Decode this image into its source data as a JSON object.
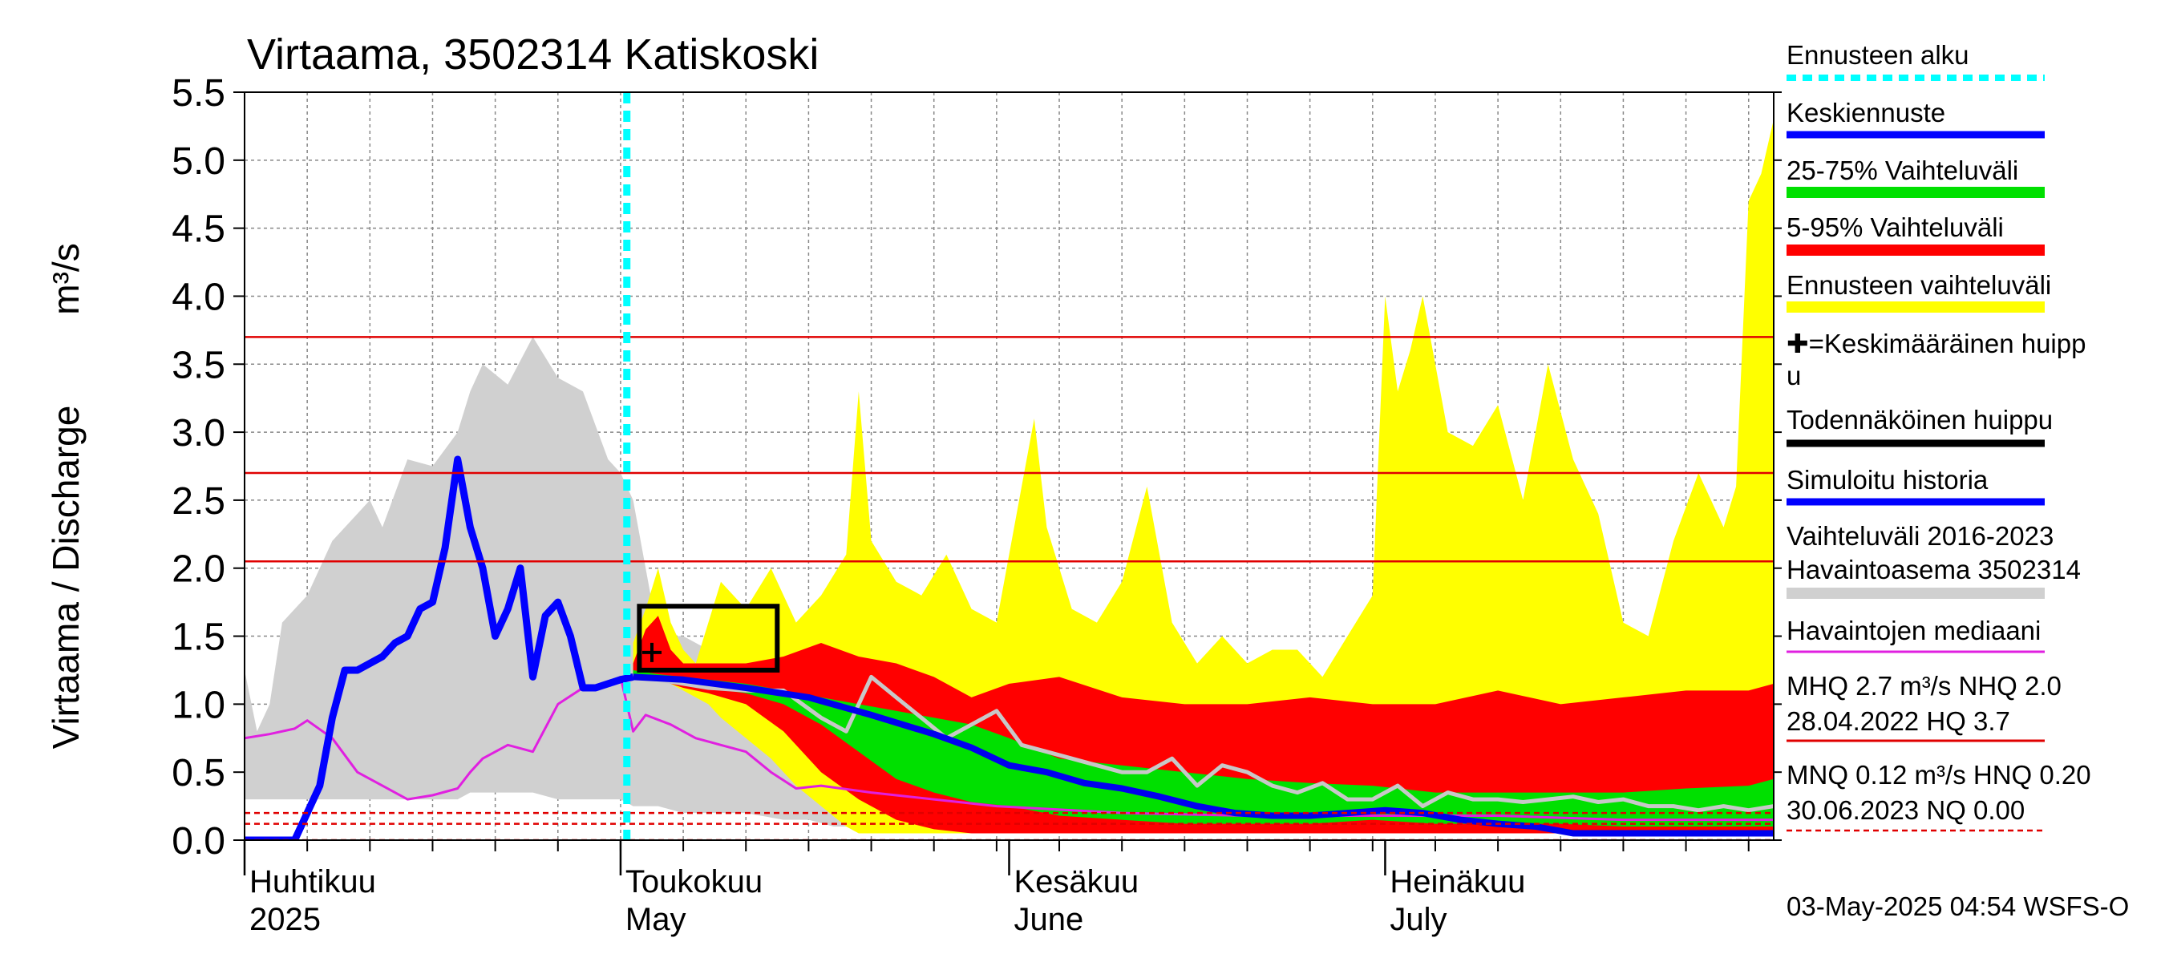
{
  "chart_data": {
    "type": "area",
    "title": "Virtaama, 3502314 Katiskoski",
    "ylabel": "Virtaama / Discharge",
    "yunit": "m³/s",
    "ylim": [
      0,
      5.5
    ],
    "yticks": [
      "0.0",
      "0.5",
      "1.0",
      "1.5",
      "2.0",
      "2.5",
      "3.0",
      "3.5",
      "4.0",
      "4.5",
      "5.0",
      "5.5"
    ],
    "x_range_days": [
      0,
      122
    ],
    "x_start": "2025-04-01",
    "month_labels": [
      {
        "day": 0,
        "fi": "Huhtikuu",
        "en": "2025"
      },
      {
        "day": 30,
        "fi": "Toukokuu",
        "en": "May"
      },
      {
        "day": 61,
        "fi": "Kesäkuu",
        "en": "June"
      },
      {
        "day": 91,
        "fi": "Heinäkuu",
        "en": "July"
      }
    ],
    "forecast_start_day": 30.5,
    "hlines": [
      {
        "label": "HQ",
        "value": 3.7,
        "style": "solid",
        "color": "#e00000"
      },
      {
        "label": "MHQ",
        "value": 2.7,
        "style": "solid",
        "color": "#e00000"
      },
      {
        "label": "NHQ",
        "value": 2.05,
        "style": "solid",
        "color": "#e00000"
      },
      {
        "label": "HNQ",
        "value": 0.2,
        "style": "dashed",
        "color": "#e00000"
      },
      {
        "label": "MNQ",
        "value": 0.12,
        "style": "dashed",
        "color": "#e00000"
      },
      {
        "label": "NQ",
        "value": 0.0,
        "style": "dashed",
        "color": "#e00000"
      }
    ],
    "series": [
      {
        "name": "Vaihteluväli 2016-2023 Havaintoasema 3502314",
        "kind": "band",
        "color": "#d0d0d0",
        "x": [
          0,
          1,
          2,
          3,
          5,
          7,
          9,
          10,
          11,
          13,
          15,
          17,
          18,
          19,
          21,
          23,
          25,
          27,
          29,
          30,
          31,
          32,
          33,
          35,
          37,
          40,
          43,
          45,
          47,
          50,
          55,
          60,
          70,
          80,
          90,
          100,
          110,
          122
        ],
        "lo": [
          0.3,
          0.3,
          0.3,
          0.3,
          0.3,
          0.3,
          0.3,
          0.3,
          0.3,
          0.3,
          0.3,
          0.3,
          0.35,
          0.35,
          0.35,
          0.35,
          0.3,
          0.3,
          0.3,
          0.3,
          0.25,
          0.25,
          0.25,
          0.2,
          0.2,
          0.2,
          0.15,
          0.15,
          0.1,
          0.1,
          0.05,
          0.05,
          0.05,
          0.05,
          0.05,
          0.05,
          0.05,
          0.05
        ],
        "hi": [
          1.25,
          0.8,
          1.0,
          1.6,
          1.8,
          2.2,
          2.4,
          2.5,
          2.3,
          2.8,
          2.75,
          3.0,
          3.3,
          3.5,
          3.35,
          3.7,
          3.4,
          3.3,
          2.8,
          2.7,
          2.5,
          2.0,
          1.5,
          1.5,
          1.4,
          1.2,
          0.9,
          0.6,
          0.4,
          0.3,
          0.1,
          0.05,
          0.05,
          0.05,
          0.05,
          0.05,
          0.05,
          0.05
        ]
      },
      {
        "name": "Ennusteen vaihteluväli",
        "kind": "band",
        "color": "#ffff00",
        "x": [
          31,
          32,
          33,
          34,
          35,
          36,
          37,
          38,
          40,
          42,
          44,
          46,
          48,
          49,
          50,
          52,
          54,
          56,
          58,
          60,
          62,
          63,
          64,
          66,
          68,
          70,
          72,
          74,
          76,
          78,
          80,
          82,
          84,
          86,
          88,
          90,
          91,
          92,
          93,
          94,
          96,
          98,
          100,
          102,
          104,
          106,
          108,
          110,
          112,
          114,
          116,
          118,
          119,
          120,
          121,
          122
        ],
        "lo": [
          1.2,
          1.2,
          1.2,
          1.15,
          1.1,
          1.05,
          1.0,
          0.9,
          0.75,
          0.6,
          0.4,
          0.25,
          0.1,
          0.05,
          0.05,
          0.05,
          0.05,
          0.05,
          0.05,
          0.05,
          0.05,
          0.05,
          0.05,
          0.05,
          0.05,
          0.05,
          0.05,
          0.05,
          0.05,
          0.05,
          0.05,
          0.05,
          0.05,
          0.05,
          0.05,
          0.05,
          0.05,
          0.05,
          0.05,
          0.05,
          0.05,
          0.05,
          0.05,
          0.05,
          0.05,
          0.05,
          0.05,
          0.05,
          0.05,
          0.05,
          0.05,
          0.05,
          0.05,
          0.05,
          0.05,
          0.05
        ],
        "hi": [
          1.45,
          1.7,
          2.0,
          1.6,
          1.4,
          1.3,
          1.6,
          1.9,
          1.7,
          2.0,
          1.6,
          1.8,
          2.1,
          3.3,
          2.2,
          1.9,
          1.8,
          2.1,
          1.7,
          1.6,
          2.6,
          3.1,
          2.3,
          1.7,
          1.6,
          1.9,
          2.6,
          1.6,
          1.3,
          1.5,
          1.3,
          1.4,
          1.4,
          1.2,
          1.5,
          1.8,
          4.0,
          3.3,
          3.6,
          4.0,
          3.0,
          2.9,
          3.2,
          2.5,
          3.5,
          2.8,
          2.4,
          1.6,
          1.5,
          2.2,
          2.7,
          2.3,
          2.6,
          4.7,
          4.9,
          5.3
        ]
      },
      {
        "name": "5-95% Vaihteluväli",
        "kind": "band",
        "color": "#ff0000",
        "x": [
          31,
          32,
          33,
          34,
          35,
          36,
          37,
          40,
          43,
          46,
          49,
          52,
          55,
          58,
          61,
          65,
          70,
          75,
          80,
          85,
          90,
          95,
          100,
          105,
          110,
          115,
          120,
          122
        ],
        "lo": [
          1.2,
          1.2,
          1.18,
          1.15,
          1.12,
          1.1,
          1.08,
          1.0,
          0.8,
          0.5,
          0.3,
          0.15,
          0.08,
          0.05,
          0.05,
          0.05,
          0.05,
          0.05,
          0.05,
          0.05,
          0.05,
          0.05,
          0.05,
          0.05,
          0.05,
          0.05,
          0.05,
          0.05
        ],
        "hi": [
          1.3,
          1.55,
          1.65,
          1.4,
          1.3,
          1.3,
          1.3,
          1.3,
          1.35,
          1.45,
          1.35,
          1.3,
          1.2,
          1.05,
          1.15,
          1.2,
          1.05,
          1.0,
          1.0,
          1.05,
          1.0,
          1.0,
          1.1,
          1.0,
          1.05,
          1.1,
          1.1,
          1.15
        ]
      },
      {
        "name": "25-75% Vaihteluväli",
        "kind": "band",
        "color": "#00e000",
        "x": [
          31,
          33,
          35,
          37,
          40,
          43,
          46,
          49,
          52,
          55,
          58,
          61,
          65,
          70,
          75,
          80,
          85,
          90,
          95,
          100,
          105,
          110,
          115,
          120,
          122
        ],
        "lo": [
          1.2,
          1.18,
          1.15,
          1.12,
          1.08,
          1.0,
          0.85,
          0.65,
          0.45,
          0.35,
          0.28,
          0.25,
          0.18,
          0.15,
          0.12,
          0.12,
          0.12,
          0.15,
          0.12,
          0.12,
          0.12,
          0.1,
          0.1,
          0.1,
          0.1
        ],
        "hi": [
          1.25,
          1.22,
          1.2,
          1.18,
          1.15,
          1.1,
          1.05,
          1.0,
          0.95,
          0.9,
          0.85,
          0.75,
          0.6,
          0.55,
          0.5,
          0.45,
          0.42,
          0.4,
          0.35,
          0.35,
          0.35,
          0.35,
          0.38,
          0.4,
          0.45
        ]
      },
      {
        "name": "Simuloitu historia",
        "kind": "line",
        "color": "#0000ff",
        "width": 9,
        "x": [
          0,
          4,
          6,
          7,
          8,
          9,
          10,
          11,
          12,
          13,
          14,
          15,
          16,
          17,
          18,
          19,
          20,
          21,
          22,
          23,
          24,
          25,
          26,
          27,
          28,
          29,
          30,
          31
        ],
        "y": [
          0.0,
          0.0,
          0.4,
          0.9,
          1.25,
          1.25,
          1.3,
          1.35,
          1.45,
          1.5,
          1.7,
          1.75,
          2.15,
          2.8,
          2.3,
          2.0,
          1.5,
          1.7,
          2.0,
          1.2,
          1.65,
          1.75,
          1.5,
          1.12,
          1.12,
          1.15,
          1.18,
          1.2
        ]
      },
      {
        "name": "Keskiennuste",
        "kind": "line",
        "color": "#0000ee",
        "width": 8,
        "x": [
          31,
          35,
          40,
          45,
          50,
          55,
          58,
          61,
          64,
          67,
          70,
          73,
          76,
          79,
          82,
          85,
          88,
          91,
          94,
          97,
          100,
          103,
          106,
          110,
          115,
          122
        ],
        "y": [
          1.2,
          1.18,
          1.12,
          1.05,
          0.92,
          0.78,
          0.68,
          0.55,
          0.5,
          0.42,
          0.38,
          0.32,
          0.25,
          0.2,
          0.18,
          0.18,
          0.2,
          0.22,
          0.2,
          0.15,
          0.12,
          0.1,
          0.05,
          0.05,
          0.05,
          0.05
        ]
      },
      {
        "name": "Havaintojen mediaani",
        "kind": "line",
        "color": "#e020e0",
        "width": 3,
        "x": [
          0,
          2,
          4,
          5,
          7,
          9,
          11,
          13,
          15,
          17,
          18,
          19,
          21,
          23,
          25,
          27,
          29,
          30,
          31,
          32,
          34,
          36,
          38,
          40,
          42,
          44,
          46,
          50,
          55,
          60,
          70,
          80,
          90,
          100,
          110,
          122
        ],
        "y": [
          0.75,
          0.78,
          0.82,
          0.88,
          0.75,
          0.5,
          0.4,
          0.3,
          0.33,
          0.38,
          0.5,
          0.6,
          0.7,
          0.65,
          1.0,
          1.12,
          1.15,
          1.2,
          0.8,
          0.92,
          0.85,
          0.75,
          0.7,
          0.65,
          0.5,
          0.38,
          0.4,
          0.35,
          0.3,
          0.25,
          0.2,
          0.18,
          0.18,
          0.18,
          0.15,
          0.15
        ]
      },
      {
        "name": "Simulated history (grey)",
        "kind": "line",
        "color": "#c8c8c8",
        "width": 5,
        "x": [
          31,
          33,
          35,
          37,
          40,
          43,
          46,
          48,
          50,
          52,
          54,
          56,
          58,
          60,
          62,
          64,
          66,
          68,
          70,
          72,
          74,
          76,
          78,
          80,
          82,
          84,
          86,
          88,
          90,
          92,
          94,
          96,
          98,
          100,
          102,
          104,
          106,
          108,
          110,
          112,
          114,
          116,
          118,
          120,
          122
        ],
        "y": [
          1.2,
          1.18,
          1.15,
          1.12,
          1.1,
          1.1,
          0.9,
          0.8,
          1.2,
          1.05,
          0.9,
          0.75,
          0.85,
          0.95,
          0.7,
          0.65,
          0.6,
          0.55,
          0.5,
          0.5,
          0.6,
          0.4,
          0.55,
          0.5,
          0.4,
          0.35,
          0.42,
          0.3,
          0.3,
          0.4,
          0.25,
          0.35,
          0.3,
          0.3,
          0.28,
          0.3,
          0.32,
          0.28,
          0.3,
          0.25,
          0.25,
          0.22,
          0.25,
          0.22,
          0.25
        ]
      }
    ],
    "peak_marker": {
      "label": "Keskimääräinen huippu",
      "x": 32.5,
      "y": 1.38
    },
    "probable_peak_box": {
      "label": "Todennäköinen huippu",
      "x0": 31.5,
      "x1": 42.5,
      "y0": 1.25,
      "y1": 1.72
    },
    "legend": [
      {
        "label": "Ennusteen alku",
        "color": "#00ffff",
        "style": "dotted"
      },
      {
        "label": "Keskiennuste",
        "color": "#0000ff",
        "style": "line"
      },
      {
        "label": "25-75% Vaihteluväli",
        "color": "#00e000",
        "style": "thick"
      },
      {
        "label": "5-95% Vaihteluväli",
        "color": "#ff0000",
        "style": "thick"
      },
      {
        "label": "Ennusteen vaihteluväli",
        "color": "#ffff00",
        "style": "thick"
      },
      {
        "label": "✚=Keskimääräinen huipp",
        "label2": "u",
        "color": "",
        "style": "none"
      },
      {
        "label": "Todennäköinen huippu",
        "color": "#000000",
        "style": "line"
      },
      {
        "label": "Simuloitu historia",
        "color": "#0000ff",
        "style": "line"
      },
      {
        "label": "Vaihteluväli 2016-2023",
        "label2": " Havaintoasema 3502314",
        "color": "#d0d0d0",
        "style": "thick"
      },
      {
        "label": "Havaintojen mediaani",
        "color": "#e020e0",
        "style": "thin"
      },
      {
        "label": "MHQ  2.7 m³/s NHQ  2.0",
        "label2": "28.04.2022 HQ  3.7",
        "color": "#e00000",
        "style": "thin"
      },
      {
        "label": "MNQ 0.12 m³/s HNQ 0.20",
        "label2": "30.06.2023 NQ 0.00",
        "color": "#e00000",
        "style": "dashed"
      }
    ],
    "footer": "03-May-2025 04:54 WSFS-O"
  }
}
